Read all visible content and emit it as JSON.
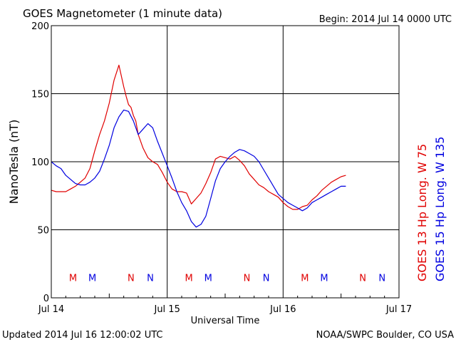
{
  "chart_data": {
    "type": "line",
    "title": "GOES Magnetometer (1 minute data)",
    "begin_label": "Begin:  2014 Jul 14 0000 UTC",
    "xlabel": "Universal Time",
    "ylabel": "NanoTesla (nT)",
    "ylim": [
      0,
      200
    ],
    "yticks": [
      0,
      50,
      100,
      150,
      200
    ],
    "xlim": [
      0,
      72
    ],
    "xaxis_unit": "hours since Jul 14 0000 UTC",
    "xticks": [
      {
        "x": 0,
        "label": "Jul 14"
      },
      {
        "x": 24,
        "label": "Jul 15"
      },
      {
        "x": 48,
        "label": "Jul 16"
      },
      {
        "x": 72,
        "label": "Jul 17"
      }
    ],
    "grid": true,
    "series": [
      {
        "name": "GOES 13 Hp  Long. W 75",
        "color": "#e00000",
        "x": [
          0,
          1,
          2,
          3,
          4,
          5,
          6,
          7,
          8,
          9,
          10,
          11,
          12,
          13,
          14,
          15,
          15.5,
          16,
          16.5,
          17,
          17.5,
          18,
          19,
          20,
          21,
          22,
          23,
          24,
          25,
          26,
          27,
          28,
          29,
          30,
          31,
          32,
          33,
          34,
          35,
          36,
          37,
          38,
          39,
          40,
          41,
          42,
          43,
          44,
          45,
          46,
          47,
          48,
          49,
          50,
          51,
          52,
          53,
          54,
          55,
          56,
          57,
          58,
          59,
          60,
          61
        ],
        "values": [
          79,
          78,
          78,
          78,
          80,
          82,
          85,
          88,
          95,
          108,
          120,
          130,
          143,
          160,
          171,
          155,
          148,
          142,
          140,
          134,
          130,
          120,
          110,
          103,
          100,
          98,
          92,
          85,
          80,
          78,
          78,
          77,
          69,
          73,
          77,
          84,
          92,
          102,
          104,
          103,
          102,
          104,
          101,
          97,
          91,
          87,
          83,
          81,
          78,
          76,
          74,
          70,
          67,
          65,
          65,
          67,
          68,
          72,
          75,
          79,
          82,
          85,
          87,
          89,
          90
        ]
      },
      {
        "name": "GOES 15 Hp  Long. W 135",
        "color": "#0000e0",
        "x": [
          0,
          1,
          2,
          3,
          4,
          5,
          6,
          7,
          8,
          9,
          10,
          11,
          12,
          13,
          14,
          15,
          16,
          17,
          18,
          19,
          20,
          21,
          22,
          23,
          24,
          25,
          26,
          27,
          28,
          29,
          30,
          31,
          32,
          33,
          34,
          35,
          36,
          37,
          38,
          39,
          40,
          41,
          42,
          43,
          44,
          45,
          46,
          47,
          48,
          49,
          50,
          51,
          52,
          53,
          54,
          55,
          56,
          57,
          58,
          59,
          60,
          61
        ],
        "values": [
          100,
          97,
          95,
          90,
          87,
          84,
          83,
          83,
          85,
          88,
          93,
          102,
          112,
          125,
          133,
          138,
          137,
          130,
          120,
          124,
          128,
          125,
          115,
          106,
          97,
          88,
          78,
          70,
          64,
          56,
          52,
          54,
          60,
          73,
          86,
          95,
          100,
          104,
          107,
          109,
          108,
          106,
          104,
          100,
          94,
          88,
          82,
          76,
          73,
          70,
          68,
          66,
          64,
          66,
          70,
          72,
          74,
          76,
          78,
          80,
          82,
          82
        ]
      }
    ],
    "markers": [
      {
        "label": "M",
        "x": 4.5,
        "color": "#e00000"
      },
      {
        "label": "M",
        "x": 8.5,
        "color": "#0000e0"
      },
      {
        "label": "N",
        "x": 16.5,
        "color": "#e00000"
      },
      {
        "label": "N",
        "x": 20.5,
        "color": "#0000e0"
      },
      {
        "label": "M",
        "x": 28.5,
        "color": "#e00000"
      },
      {
        "label": "M",
        "x": 32.5,
        "color": "#0000e0"
      },
      {
        "label": "N",
        "x": 40.5,
        "color": "#e00000"
      },
      {
        "label": "N",
        "x": 44.5,
        "color": "#0000e0"
      },
      {
        "label": "M",
        "x": 52.5,
        "color": "#e00000"
      },
      {
        "label": "M",
        "x": 56.5,
        "color": "#0000e0"
      },
      {
        "label": "N",
        "x": 64.5,
        "color": "#e00000"
      },
      {
        "label": "N",
        "x": 68.5,
        "color": "#0000e0"
      }
    ],
    "marker_level": 15,
    "legend_placement": "right, rotated vertical"
  },
  "footer": {
    "updated": "Updated 2014 Jul 16 12:00:02 UTC",
    "credit": "NOAA/SWPC Boulder, CO USA"
  }
}
